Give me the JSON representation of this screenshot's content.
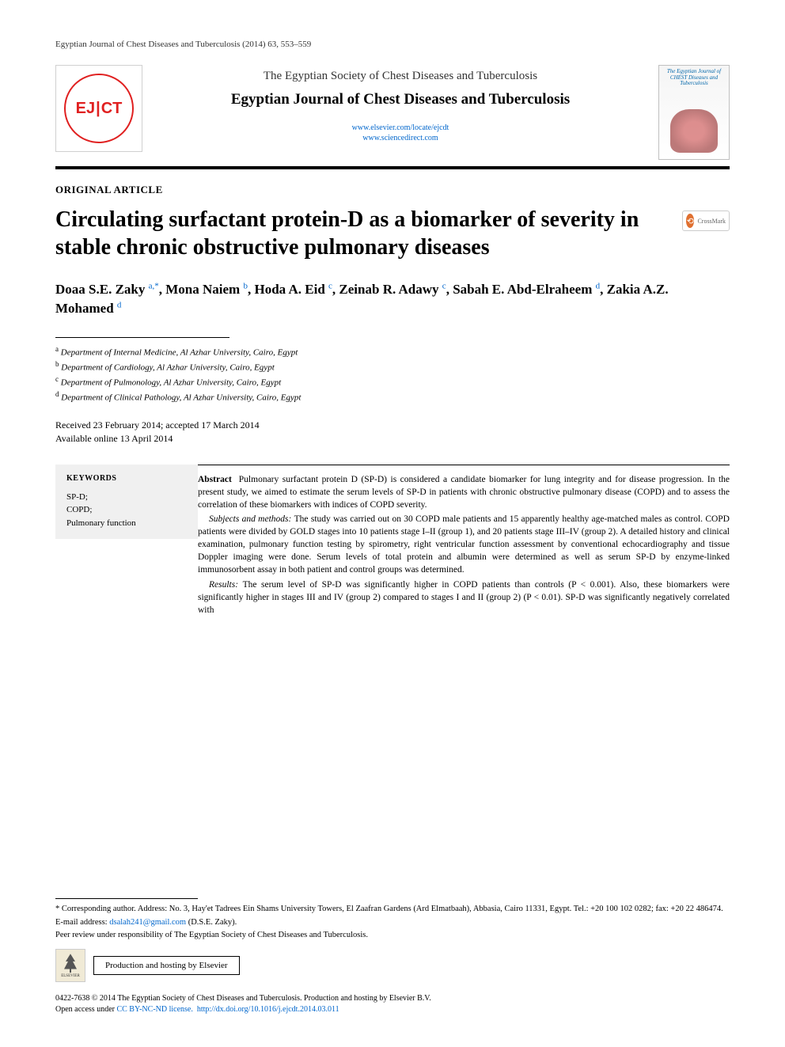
{
  "running_header": "Egyptian Journal of Chest Diseases and Tuberculosis (2014) 63, 553–559",
  "masthead": {
    "logo_left": "EJ",
    "logo_right": "CT",
    "society": "The Egyptian Society of Chest Diseases and Tuberculosis",
    "journal": "Egyptian Journal of Chest Diseases and Tuberculosis",
    "link1": "www.elsevier.com/locate/ejcdt",
    "link2": "www.sciencedirect.com",
    "cover_text": "The Egyptian Journal of CHEST Diseases and Tuberculosis"
  },
  "article_type": "ORIGINAL ARTICLE",
  "title": "Circulating surfactant protein-D as a biomarker of severity in stable chronic obstructive pulmonary diseases",
  "crossmark_label": "CrossMark",
  "authors_html": "Doaa S.E. Zaky <sup>a,*</sup>, Mona Naiem <sup>b</sup>, Hoda A. Eid <sup>c</sup>, Zeinab R. Adawy <sup>c</sup>, Sabah E. Abd-Elraheem <sup>d</sup>, Zakia A.Z. Mohamed <sup>d</sup>",
  "affiliations": [
    {
      "sup": "a",
      "text": "Department of Internal Medicine, Al Azhar University, Cairo, Egypt"
    },
    {
      "sup": "b",
      "text": "Department of Cardiology, Al Azhar University, Cairo, Egypt"
    },
    {
      "sup": "c",
      "text": "Department of Pulmonology, Al Azhar University, Cairo, Egypt"
    },
    {
      "sup": "d",
      "text": "Department of Clinical Pathology, Al Azhar University, Cairo, Egypt"
    }
  ],
  "dates": {
    "line1": "Received 23 February 2014; accepted 17 March 2014",
    "line2": "Available online 13 April 2014"
  },
  "keywords": {
    "heading": "KEYWORDS",
    "items": [
      "SP-D;",
      "COPD;",
      "Pulmonary function"
    ]
  },
  "abstract": {
    "lead": "Abstract",
    "p1": "Pulmonary surfactant protein D (SP-D) is considered a candidate biomarker for lung integrity and for disease progression. In the present study, we aimed to estimate the serum levels of SP-D in patients with chronic obstructive pulmonary disease (COPD) and to assess the correlation of these biomarkers with indices of COPD severity.",
    "p2_lead": "Subjects and methods:",
    "p2": "The study was carried out on 30 COPD male patients and 15 apparently healthy age-matched males as control. COPD patients were divided by GOLD stages into 10 patients stage I–II (group 1), and 20 patients stage III–IV (group 2). A detailed history and clinical examination, pulmonary function testing by spirometry, right ventricular function assessment by conventional echocardiography and tissue Doppler imaging were done. Serum levels of total protein and albumin were determined as well as serum SP-D by enzyme-linked immunosorbent assay in both patient and control groups was determined.",
    "p3_lead": "Results:",
    "p3": "The serum level of SP-D was significantly higher in COPD patients than controls (P < 0.001). Also, these biomarkers were significantly higher in stages III and IV (group 2) compared to stages I and II (group 2) (P < 0.01). SP-D was significantly negatively correlated with"
  },
  "footer": {
    "corr": "* Corresponding author. Address: No. 3, Hay'et Tadrees Ein Shams University Towers, El Zaafran Gardens (Ard Elmatbaah), Abbasia, Cairo 11331, Egypt. Tel.: +20 100 102 0282; fax: +20 22 486474.",
    "email_label": "E-mail address:",
    "email": "dsalah241@gmail.com",
    "email_author": "(D.S.E. Zaky).",
    "peer_review": "Peer review under responsibility of The Egyptian Society of Chest Diseases and Tuberculosis.",
    "elsevier_label": "ELSEVIER",
    "hosting": "Production and hosting by Elsevier",
    "copyright_line1": "0422-7638 © 2014 The Egyptian Society of Chest Diseases and Tuberculosis. Production and hosting by Elsevier B.V.",
    "copyright_line2_a": "Open access under ",
    "copyright_line2_link1": "CC BY-NC-ND license.",
    "copyright_line2_link2": "http://dx.doi.org/10.1016/j.ejcdt.2014.03.011"
  },
  "colors": {
    "link": "#0066cc",
    "logo_red": "#e02020",
    "keywords_bg": "#f0f0f0"
  }
}
